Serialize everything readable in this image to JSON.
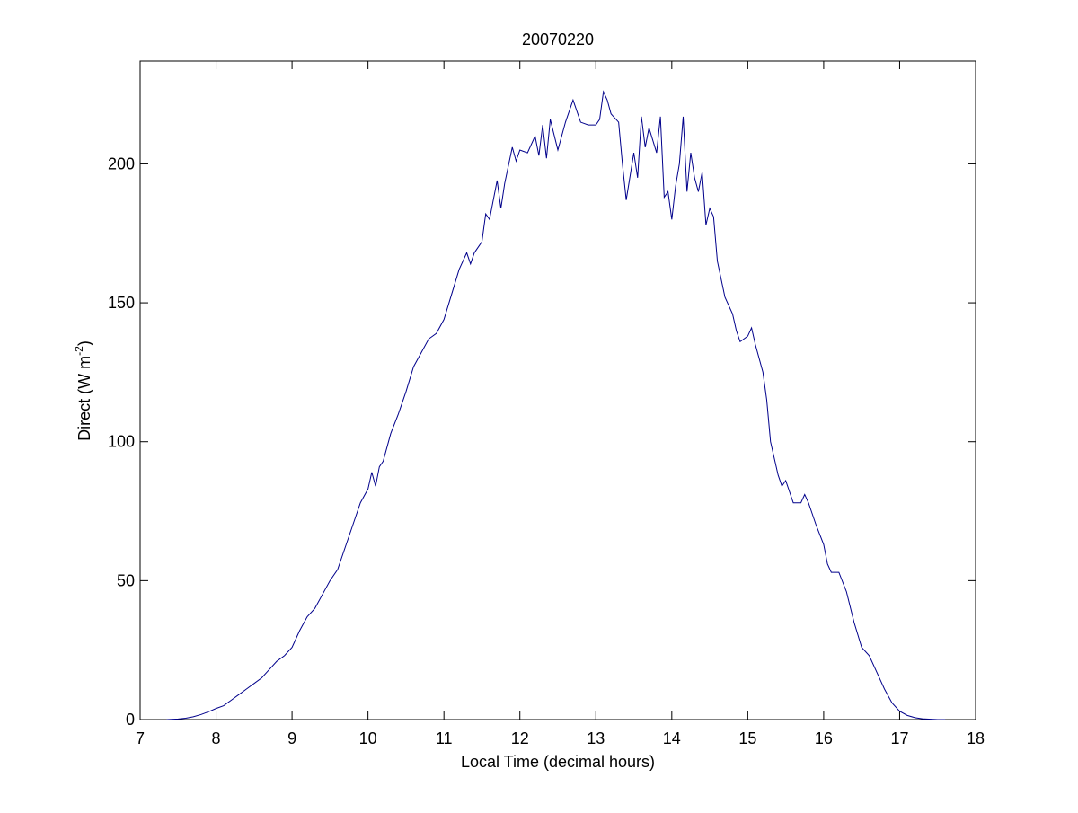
{
  "chart_data": {
    "type": "line",
    "title": "20070220",
    "xlabel": "Local Time (decimal hours)",
    "ylabel": {
      "text": "Direct (W m",
      "superscript": "-2",
      "suffix": ")"
    },
    "xlim": [
      7,
      18
    ],
    "xticks": [
      7,
      8,
      9,
      10,
      11,
      12,
      13,
      14,
      15,
      16,
      17,
      18
    ],
    "ylim": [
      0,
      237
    ],
    "yticks": [
      0,
      50,
      100,
      150,
      200
    ],
    "grid": false,
    "series": [
      {
        "color": "#00008b",
        "x": [
          7.35,
          7.5,
          7.6,
          7.7,
          7.8,
          7.9,
          8.0,
          8.1,
          8.2,
          8.3,
          8.4,
          8.5,
          8.6,
          8.7,
          8.8,
          8.9,
          9.0,
          9.1,
          9.2,
          9.3,
          9.4,
          9.5,
          9.6,
          9.7,
          9.8,
          9.9,
          10.0,
          10.05,
          10.1,
          10.15,
          10.2,
          10.3,
          10.4,
          10.5,
          10.6,
          10.7,
          10.8,
          10.9,
          11.0,
          11.1,
          11.2,
          11.3,
          11.35,
          11.4,
          11.5,
          11.55,
          11.6,
          11.7,
          11.75,
          11.8,
          11.9,
          11.95,
          12.0,
          12.1,
          12.2,
          12.25,
          12.3,
          12.35,
          12.4,
          12.5,
          12.6,
          12.7,
          12.8,
          12.9,
          13.0,
          13.05,
          13.1,
          13.15,
          13.2,
          13.3,
          13.35,
          13.4,
          13.5,
          13.55,
          13.6,
          13.65,
          13.7,
          13.8,
          13.85,
          13.9,
          13.95,
          14.0,
          14.05,
          14.1,
          14.15,
          14.2,
          14.25,
          14.3,
          14.35,
          14.4,
          14.45,
          14.5,
          14.55,
          14.6,
          14.7,
          14.8,
          14.85,
          14.9,
          15.0,
          15.05,
          15.1,
          15.2,
          15.25,
          15.3,
          15.4,
          15.45,
          15.5,
          15.6,
          15.7,
          15.75,
          15.8,
          15.9,
          16.0,
          16.05,
          16.1,
          16.2,
          16.3,
          16.4,
          16.5,
          16.6,
          16.7,
          16.8,
          16.9,
          17.0,
          17.1,
          17.2,
          17.3,
          17.5,
          17.6
        ],
        "values": [
          0,
          0.2,
          0.5,
          1,
          1.8,
          2.8,
          4,
          5,
          7,
          9,
          11,
          13,
          15,
          18,
          21,
          23,
          26,
          32,
          37,
          40,
          45,
          50,
          54,
          62,
          70,
          78,
          83,
          89,
          84,
          91,
          93,
          103,
          110,
          118,
          127,
          132,
          137,
          139,
          144,
          153,
          162,
          168,
          164,
          168,
          172,
          182,
          180,
          194,
          184,
          193,
          206,
          201,
          205,
          204,
          210,
          203,
          214,
          202,
          216,
          205,
          215,
          223,
          215,
          214,
          214,
          216,
          226,
          223,
          218,
          215,
          200,
          187,
          204,
          195,
          217,
          206,
          213,
          204,
          217,
          188,
          190,
          180,
          192,
          200,
          217,
          190,
          204,
          195,
          190,
          197,
          178,
          184,
          181,
          165,
          152,
          146,
          140,
          136,
          138,
          141,
          135,
          125,
          115,
          100,
          88,
          84,
          86,
          78,
          78,
          81,
          78,
          70,
          63,
          56,
          53,
          53,
          46,
          35,
          26,
          23,
          17,
          11,
          6,
          3,
          1.5,
          0.7,
          0.3,
          0,
          0
        ]
      }
    ]
  }
}
